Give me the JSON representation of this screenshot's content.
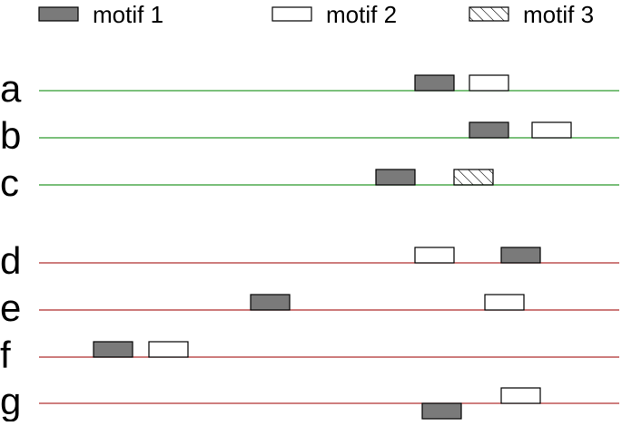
{
  "legend": [
    {
      "label": "motif 1",
      "style": "filled"
    },
    {
      "label": "motif 2",
      "style": "empty"
    },
    {
      "label": "motif 3",
      "style": "hatched"
    }
  ],
  "colors": {
    "filled": "#7a7a7a",
    "green_line": "#2e9a2e",
    "red_line": "#b03030",
    "outline": "#000000"
  },
  "rows": [
    {
      "label": "a",
      "group": "green",
      "motifs": [
        {
          "type": "filled",
          "position": 457
        },
        {
          "type": "empty",
          "position": 517
        }
      ]
    },
    {
      "label": "b",
      "group": "green",
      "motifs": [
        {
          "type": "filled",
          "position": 517
        },
        {
          "type": "empty",
          "position": 586
        }
      ]
    },
    {
      "label": "c",
      "group": "green",
      "motifs": [
        {
          "type": "filled",
          "position": 414
        },
        {
          "type": "hatched",
          "position": 500
        }
      ]
    },
    {
      "label": "d",
      "group": "red",
      "motifs": [
        {
          "type": "empty",
          "position": 457
        },
        {
          "type": "filled",
          "position": 552
        }
      ]
    },
    {
      "label": "e",
      "group": "red",
      "motifs": [
        {
          "type": "filled",
          "position": 276
        },
        {
          "type": "empty",
          "position": 534
        }
      ]
    },
    {
      "label": "f",
      "group": "red",
      "motifs": [
        {
          "type": "filled",
          "position": 103
        },
        {
          "type": "empty",
          "position": 164
        }
      ]
    },
    {
      "label": "g",
      "group": "red",
      "motifs": [
        {
          "type": "filled",
          "position": 465,
          "below": true
        },
        {
          "type": "empty",
          "position": 552
        }
      ]
    }
  ]
}
